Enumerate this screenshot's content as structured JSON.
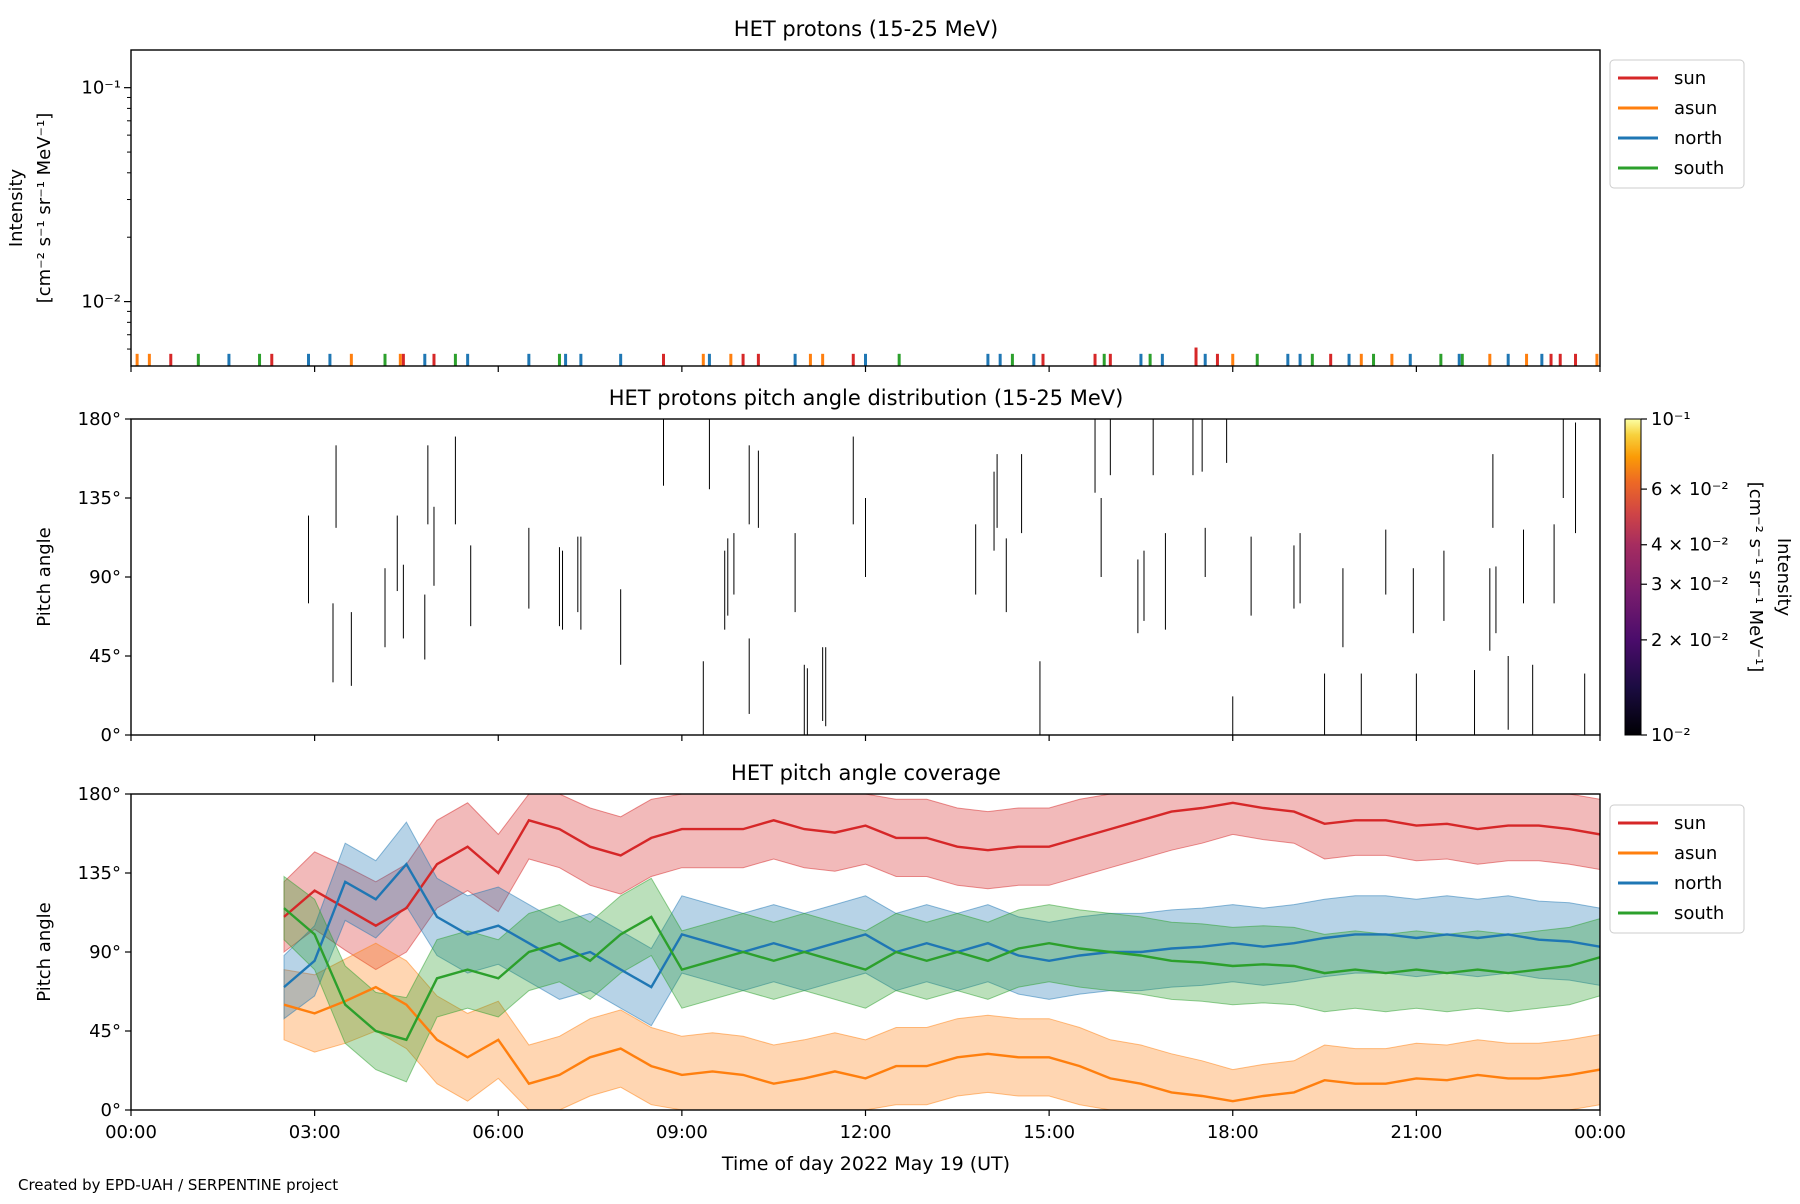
{
  "colors": {
    "sun": "#d62728",
    "asun": "#ff7f0e",
    "north": "#1f77b4",
    "south": "#2ca02c"
  },
  "x_ticks": [
    "00:00",
    "03:00",
    "06:00",
    "09:00",
    "12:00",
    "15:00",
    "18:00",
    "21:00",
    "00:00"
  ],
  "xlabel": "Time of day 2022 May 19 (UT)",
  "footer": "Created by EPD-UAH / SERPENTINE project",
  "panels": {
    "intensity": {
      "title": "HET protons (15-25 MeV)",
      "ylabel_line1": "Intensity",
      "ylabel_line2": "[cm⁻² s⁻¹ sr⁻¹ MeV⁻¹]",
      "yticks": [
        {
          "label": "10⁻¹",
          "value": 0.1
        },
        {
          "label": "10⁻²",
          "value": 0.01
        }
      ],
      "legend": [
        "sun",
        "asun",
        "north",
        "south"
      ]
    },
    "pad": {
      "title": "HET protons pitch angle distribution (15-25 MeV)",
      "ylabel": "Pitch angle",
      "yticks": [
        "0°",
        "45°",
        "90°",
        "135°",
        "180°"
      ],
      "colorbar": {
        "label_line1": "Intensity",
        "label_line2": "[cm⁻² s⁻¹ sr⁻¹ MeV⁻¹]",
        "ticks": [
          {
            "label": "10⁻¹",
            "value": 0.1
          },
          {
            "label": "6 × 10⁻²",
            "value": 0.06
          },
          {
            "label": "4 × 10⁻²",
            "value": 0.04
          },
          {
            "label": "3 × 10⁻²",
            "value": 0.03
          },
          {
            "label": "2 × 10⁻²",
            "value": 0.02
          },
          {
            "label": "10⁻²",
            "value": 0.01
          }
        ]
      }
    },
    "coverage": {
      "title": "HET pitch angle coverage",
      "ylabel": "Pitch angle",
      "yticks": [
        "0°",
        "45°",
        "90°",
        "135°",
        "180°"
      ],
      "legend": [
        "sun",
        "asun",
        "north",
        "south"
      ]
    }
  },
  "chart_data": [
    {
      "type": "line",
      "title": "HET protons (15-25 MeV)",
      "xlabel": "",
      "ylabel": "Intensity [cm⁻² s⁻¹ sr⁻¹ MeV⁻¹]",
      "xlim_hours": [
        0,
        24
      ],
      "yscale": "log",
      "ylim": [
        0.005,
        0.15
      ],
      "legend_position": "upper right outside",
      "events": [
        {
          "t": 0.1,
          "s": "asun"
        },
        {
          "t": 0.3,
          "s": "asun"
        },
        {
          "t": 0.65,
          "s": "sun"
        },
        {
          "t": 1.1,
          "s": "south"
        },
        {
          "t": 1.6,
          "s": "north"
        },
        {
          "t": 2.1,
          "s": "south"
        },
        {
          "t": 2.3,
          "s": "sun"
        },
        {
          "t": 2.9,
          "s": "north"
        },
        {
          "t": 3.25,
          "s": "north"
        },
        {
          "t": 3.6,
          "s": "asun"
        },
        {
          "t": 4.15,
          "s": "south"
        },
        {
          "t": 4.4,
          "s": "asun"
        },
        {
          "t": 4.45,
          "s": "sun"
        },
        {
          "t": 4.8,
          "s": "north"
        },
        {
          "t": 4.95,
          "s": "sun"
        },
        {
          "t": 5.3,
          "s": "south"
        },
        {
          "t": 5.5,
          "s": "north"
        },
        {
          "t": 6.5,
          "s": "north"
        },
        {
          "t": 7.0,
          "s": "south"
        },
        {
          "t": 7.1,
          "s": "north"
        },
        {
          "t": 7.35,
          "s": "north"
        },
        {
          "t": 8.0,
          "s": "north"
        },
        {
          "t": 8.7,
          "s": "sun"
        },
        {
          "t": 9.35,
          "s": "asun"
        },
        {
          "t": 9.45,
          "s": "north"
        },
        {
          "t": 9.8,
          "s": "asun"
        },
        {
          "t": 10.0,
          "s": "sun"
        },
        {
          "t": 10.25,
          "s": "sun"
        },
        {
          "t": 10.85,
          "s": "north"
        },
        {
          "t": 11.1,
          "s": "asun"
        },
        {
          "t": 11.3,
          "s": "asun"
        },
        {
          "t": 11.8,
          "s": "sun"
        },
        {
          "t": 12.0,
          "s": "north"
        },
        {
          "t": 12.55,
          "s": "south"
        },
        {
          "t": 14.0,
          "s": "north"
        },
        {
          "t": 14.2,
          "s": "north"
        },
        {
          "t": 14.4,
          "s": "south"
        },
        {
          "t": 14.75,
          "s": "north"
        },
        {
          "t": 14.9,
          "s": "sun"
        },
        {
          "t": 15.75,
          "s": "sun"
        },
        {
          "t": 15.9,
          "s": "south"
        },
        {
          "t": 16.0,
          "s": "sun"
        },
        {
          "t": 16.5,
          "s": "north"
        },
        {
          "t": 16.65,
          "s": "south"
        },
        {
          "t": 16.85,
          "s": "north"
        },
        {
          "t": 17.4,
          "s": "sun"
        },
        {
          "t": 17.55,
          "s": "north"
        },
        {
          "t": 17.75,
          "s": "sun"
        },
        {
          "t": 18.0,
          "s": "asun"
        },
        {
          "t": 18.4,
          "s": "south"
        },
        {
          "t": 18.9,
          "s": "north"
        },
        {
          "t": 19.1,
          "s": "north"
        },
        {
          "t": 19.3,
          "s": "south"
        },
        {
          "t": 19.6,
          "s": "sun"
        },
        {
          "t": 19.9,
          "s": "north"
        },
        {
          "t": 20.1,
          "s": "asun"
        },
        {
          "t": 20.3,
          "s": "south"
        },
        {
          "t": 20.6,
          "s": "asun"
        },
        {
          "t": 20.9,
          "s": "north"
        },
        {
          "t": 21.4,
          "s": "south"
        },
        {
          "t": 21.7,
          "s": "north"
        },
        {
          "t": 21.75,
          "s": "south"
        },
        {
          "t": 22.2,
          "s": "asun"
        },
        {
          "t": 22.5,
          "s": "north"
        },
        {
          "t": 22.8,
          "s": "asun"
        },
        {
          "t": 23.05,
          "s": "north"
        },
        {
          "t": 23.2,
          "s": "sun"
        },
        {
          "t": 23.35,
          "s": "sun"
        },
        {
          "t": 23.6,
          "s": "sun"
        },
        {
          "t": 23.95,
          "s": "asun"
        }
      ]
    },
    {
      "type": "heatmap",
      "title": "HET protons pitch angle distribution (15-25 MeV)",
      "ylabel": "Pitch angle",
      "xlim_hours": [
        0,
        24
      ],
      "ylim": [
        0,
        180
      ],
      "colorbar_scale": "log",
      "colorbar_range": [
        0.01,
        0.1
      ],
      "segments": [
        [
          2.9,
          75,
          125
        ],
        [
          3.3,
          30,
          75
        ],
        [
          3.35,
          118,
          165
        ],
        [
          3.6,
          28,
          70
        ],
        [
          4.15,
          50,
          95
        ],
        [
          4.35,
          82,
          125
        ],
        [
          4.45,
          55,
          97
        ],
        [
          4.8,
          43,
          80
        ],
        [
          4.85,
          120,
          165
        ],
        [
          4.95,
          85,
          130
        ],
        [
          5.3,
          120,
          170
        ],
        [
          5.55,
          62,
          108
        ],
        [
          6.5,
          72,
          118
        ],
        [
          7.0,
          62,
          107
        ],
        [
          7.05,
          60,
          105
        ],
        [
          7.3,
          70,
          113
        ],
        [
          7.35,
          60,
          113
        ],
        [
          8.0,
          40,
          83
        ],
        [
          8.7,
          142,
          180
        ],
        [
          9.35,
          0,
          42
        ],
        [
          9.45,
          140,
          180
        ],
        [
          9.7,
          60,
          105
        ],
        [
          9.75,
          68,
          112
        ],
        [
          9.85,
          80,
          115
        ],
        [
          10.1,
          12,
          55
        ],
        [
          10.1,
          120,
          165
        ],
        [
          10.25,
          118,
          162
        ],
        [
          10.85,
          70,
          115
        ],
        [
          11.0,
          0,
          40
        ],
        [
          11.05,
          0,
          38
        ],
        [
          11.3,
          8,
          50
        ],
        [
          11.35,
          5,
          50
        ],
        [
          11.8,
          120,
          170
        ],
        [
          12.0,
          90,
          135
        ],
        [
          13.8,
          80,
          120
        ],
        [
          14.1,
          105,
          150
        ],
        [
          14.15,
          118,
          160
        ],
        [
          14.3,
          70,
          112
        ],
        [
          14.85,
          0,
          42
        ],
        [
          14.55,
          115,
          160
        ],
        [
          15.75,
          138,
          180
        ],
        [
          15.85,
          90,
          135
        ],
        [
          16.0,
          148,
          180
        ],
        [
          16.45,
          58,
          100
        ],
        [
          16.55,
          65,
          105
        ],
        [
          16.7,
          148,
          180
        ],
        [
          16.9,
          60,
          115
        ],
        [
          17.35,
          148,
          180
        ],
        [
          17.5,
          150,
          180
        ],
        [
          17.55,
          90,
          118
        ],
        [
          17.9,
          155,
          180
        ],
        [
          18.0,
          0,
          22
        ],
        [
          18.3,
          68,
          113
        ],
        [
          19.0,
          72,
          108
        ],
        [
          19.1,
          75,
          115
        ],
        [
          19.5,
          0,
          35
        ],
        [
          19.8,
          50,
          95
        ],
        [
          20.1,
          0,
          35
        ],
        [
          20.5,
          80,
          117
        ],
        [
          20.95,
          58,
          95
        ],
        [
          21.0,
          0,
          35
        ],
        [
          21.45,
          65,
          105
        ],
        [
          21.95,
          0,
          37
        ],
        [
          22.2,
          48,
          95
        ],
        [
          22.25,
          118,
          160
        ],
        [
          22.3,
          58,
          96
        ],
        [
          22.5,
          3,
          45
        ],
        [
          22.75,
          75,
          117
        ],
        [
          22.9,
          0,
          40
        ],
        [
          23.25,
          75,
          120
        ],
        [
          23.4,
          135,
          180
        ],
        [
          23.6,
          115,
          178
        ],
        [
          23.75,
          0,
          35
        ]
      ]
    },
    {
      "type": "area",
      "title": "HET pitch angle coverage",
      "xlabel": "Time of day 2022 May 19 (UT)",
      "ylabel": "Pitch angle",
      "xlim_hours": [
        0,
        24
      ],
      "ylim": [
        0,
        180
      ],
      "legend_position": "upper right outside",
      "x_hours": [
        2.5,
        3,
        3.5,
        4,
        4.5,
        5,
        5.5,
        6,
        6.5,
        7,
        7.5,
        8,
        8.5,
        9,
        9.5,
        10,
        10.5,
        11,
        11.5,
        12,
        12.5,
        13,
        13.5,
        14,
        14.5,
        15,
        15.5,
        16,
        16.5,
        17,
        17.5,
        18,
        18.5,
        19,
        19.5,
        20,
        20.5,
        21,
        21.5,
        22,
        22.5,
        23,
        23.5,
        24
      ],
      "series": [
        {
          "name": "sun",
          "center": [
            110,
            125,
            115,
            105,
            115,
            140,
            150,
            135,
            165,
            160,
            150,
            145,
            155,
            160,
            160,
            160,
            165,
            160,
            158,
            162,
            155,
            155,
            150,
            148,
            150,
            150,
            155,
            160,
            165,
            170,
            172,
            175,
            172,
            170,
            163,
            165,
            165,
            162,
            163,
            160,
            162,
            162,
            160,
            157
          ],
          "halfwidth": [
            20,
            22,
            24,
            25,
            25,
            25,
            25,
            22,
            22,
            22,
            22,
            22,
            22,
            22,
            22,
            22,
            22,
            22,
            22,
            22,
            22,
            22,
            22,
            22,
            22,
            22,
            22,
            22,
            22,
            22,
            20,
            18,
            18,
            18,
            20,
            20,
            20,
            20,
            20,
            20,
            20,
            20,
            20,
            20
          ]
        },
        {
          "name": "asun",
          "center": [
            60,
            55,
            62,
            70,
            60,
            40,
            30,
            40,
            15,
            20,
            30,
            35,
            25,
            20,
            22,
            20,
            15,
            18,
            22,
            18,
            25,
            25,
            30,
            32,
            30,
            30,
            25,
            18,
            15,
            10,
            8,
            5,
            8,
            10,
            17,
            15,
            15,
            18,
            17,
            20,
            18,
            18,
            20,
            23
          ],
          "halfwidth": [
            20,
            22,
            24,
            25,
            25,
            25,
            25,
            22,
            22,
            22,
            22,
            22,
            22,
            22,
            22,
            22,
            22,
            22,
            22,
            22,
            22,
            22,
            22,
            22,
            22,
            22,
            22,
            22,
            22,
            22,
            20,
            18,
            18,
            18,
            20,
            20,
            20,
            20,
            20,
            20,
            20,
            20,
            20,
            20
          ]
        },
        {
          "name": "north",
          "center": [
            70,
            85,
            130,
            120,
            140,
            110,
            100,
            105,
            95,
            85,
            90,
            80,
            70,
            100,
            95,
            90,
            95,
            90,
            95,
            100,
            90,
            95,
            90,
            95,
            88,
            85,
            88,
            90,
            90,
            92,
            93,
            95,
            93,
            95,
            98,
            100,
            100,
            98,
            100,
            98,
            100,
            97,
            96,
            93
          ],
          "halfwidth": [
            18,
            20,
            22,
            22,
            24,
            22,
            22,
            22,
            22,
            22,
            22,
            22,
            22,
            22,
            22,
            22,
            22,
            22,
            22,
            22,
            22,
            22,
            22,
            22,
            22,
            22,
            22,
            22,
            22,
            22,
            22,
            22,
            22,
            22,
            22,
            22,
            22,
            22,
            22,
            22,
            22,
            22,
            22,
            22
          ]
        },
        {
          "name": "south",
          "center": [
            115,
            100,
            60,
            45,
            40,
            75,
            80,
            75,
            90,
            95,
            85,
            100,
            110,
            80,
            85,
            90,
            85,
            90,
            85,
            80,
            90,
            85,
            90,
            85,
            92,
            95,
            92,
            90,
            88,
            85,
            84,
            82,
            83,
            82,
            78,
            80,
            78,
            80,
            78,
            80,
            78,
            80,
            82,
            87
          ],
          "halfwidth": [
            18,
            20,
            22,
            22,
            24,
            22,
            22,
            22,
            22,
            22,
            22,
            22,
            22,
            22,
            22,
            22,
            22,
            22,
            22,
            22,
            22,
            22,
            22,
            22,
            22,
            22,
            22,
            22,
            22,
            22,
            22,
            22,
            22,
            22,
            22,
            22,
            22,
            22,
            22,
            22,
            22,
            22,
            22,
            22
          ]
        }
      ]
    }
  ]
}
